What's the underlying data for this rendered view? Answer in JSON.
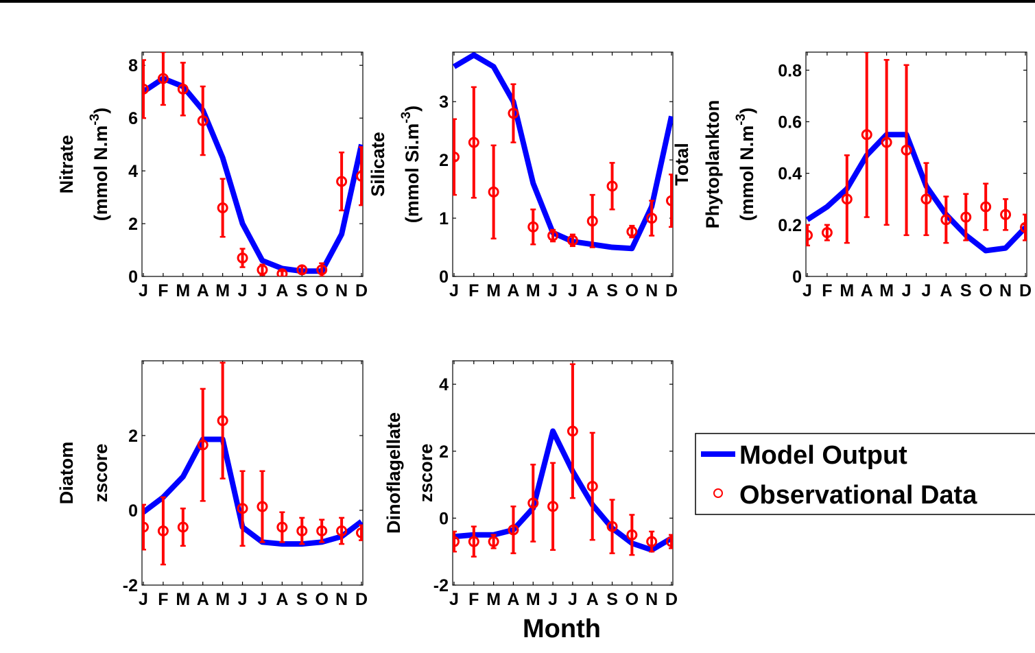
{
  "figure": {
    "xlabel": "Month",
    "legend": {
      "placement": "bottom-right",
      "entries": [
        {
          "label": "Model Output",
          "marker": "line",
          "color": "#0000ff"
        },
        {
          "label": "Observational Data",
          "marker": "circle",
          "color": "#ff0000"
        }
      ]
    }
  },
  "chart_data": [
    {
      "type": "line",
      "ylabel": [
        "Nitrate",
        "(mmol N.m^-3)"
      ],
      "categories": [
        "J",
        "F",
        "M",
        "A",
        "M",
        "J",
        "J",
        "A",
        "S",
        "O",
        "N",
        "D"
      ],
      "ylim": [
        0,
        8.5
      ],
      "yticks": [
        0,
        2,
        4,
        6,
        8
      ],
      "series": [
        {
          "name": "Model Output",
          "values": [
            7.0,
            7.5,
            7.2,
            6.3,
            4.5,
            2.0,
            0.6,
            0.3,
            0.2,
            0.2,
            1.6,
            5.0
          ]
        },
        {
          "name": "Observational Data",
          "values": [
            7.1,
            7.5,
            7.1,
            5.9,
            2.6,
            0.7,
            0.25,
            0.1,
            0.25,
            0.25,
            3.6,
            3.8
          ],
          "errors": [
            1.1,
            1.0,
            1.0,
            1.3,
            1.1,
            0.35,
            0.2,
            0.1,
            0.15,
            0.25,
            1.1,
            1.1
          ]
        }
      ]
    },
    {
      "type": "line",
      "ylabel": [
        "Silicate",
        "(mmol Si.m^-3)"
      ],
      "categories": [
        "J",
        "F",
        "M",
        "A",
        "M",
        "J",
        "J",
        "A",
        "S",
        "O",
        "N",
        "D"
      ],
      "ylim": [
        0,
        3.85
      ],
      "yticks": [
        0,
        1,
        2,
        3
      ],
      "series": [
        {
          "name": "Model Output",
          "values": [
            3.6,
            3.8,
            3.6,
            3.0,
            1.6,
            0.75,
            0.6,
            0.55,
            0.5,
            0.48,
            1.2,
            2.75
          ]
        },
        {
          "name": "Observational Data",
          "values": [
            2.05,
            2.3,
            1.45,
            2.8,
            0.85,
            0.7,
            0.62,
            0.95,
            1.55,
            0.77,
            1.0,
            1.3
          ],
          "errors": [
            0.65,
            0.95,
            0.8,
            0.5,
            0.3,
            0.1,
            0.1,
            0.45,
            0.4,
            0.1,
            0.3,
            0.45
          ]
        }
      ]
    },
    {
      "type": "line",
      "ylabel": [
        "Total",
        "Phytoplankton",
        "(mmol N.m^-3)"
      ],
      "categories": [
        "J",
        "F",
        "M",
        "A",
        "M",
        "J",
        "J",
        "A",
        "S",
        "O",
        "N",
        "D"
      ],
      "ylim": [
        0,
        0.87
      ],
      "yticks": [
        0,
        0.2,
        0.4,
        0.6,
        0.8
      ],
      "series": [
        {
          "name": "Model Output",
          "values": [
            0.22,
            0.27,
            0.34,
            0.47,
            0.55,
            0.55,
            0.35,
            0.24,
            0.16,
            0.1,
            0.11,
            0.19
          ]
        },
        {
          "name": "Observational Data",
          "values": [
            0.16,
            0.17,
            0.3,
            0.55,
            0.52,
            0.49,
            0.3,
            0.22,
            0.23,
            0.27,
            0.24,
            0.19
          ],
          "errors": [
            0.04,
            0.03,
            0.17,
            0.32,
            0.32,
            0.33,
            0.14,
            0.09,
            0.09,
            0.09,
            0.06,
            0.05
          ]
        }
      ]
    },
    {
      "type": "line",
      "ylabel": [
        "Diatom",
        "zscore"
      ],
      "categories": [
        "J",
        "F",
        "M",
        "A",
        "M",
        "J",
        "J",
        "A",
        "S",
        "O",
        "N",
        "D"
      ],
      "ylim": [
        -2,
        4
      ],
      "yticks": [
        -2,
        0,
        2
      ],
      "series": [
        {
          "name": "Model Output",
          "values": [
            -0.05,
            0.35,
            0.9,
            1.9,
            1.9,
            -0.45,
            -0.85,
            -0.9,
            -0.9,
            -0.85,
            -0.7,
            -0.3
          ]
        },
        {
          "name": "Observational Data",
          "values": [
            -0.45,
            -0.55,
            -0.45,
            1.75,
            2.4,
            0.05,
            0.1,
            -0.45,
            -0.55,
            -0.55,
            -0.55,
            -0.6
          ],
          "errors": [
            0.6,
            0.9,
            0.5,
            1.5,
            1.55,
            1.0,
            0.95,
            0.4,
            0.35,
            0.3,
            0.35,
            0.2
          ]
        }
      ]
    },
    {
      "type": "line",
      "ylabel": [
        "Dinoflagellate",
        "zscore"
      ],
      "categories": [
        "J",
        "F",
        "M",
        "A",
        "M",
        "J",
        "J",
        "A",
        "S",
        "O",
        "N",
        "D"
      ],
      "ylim": [
        -2,
        4.7
      ],
      "yticks": [
        -2,
        0,
        2,
        4
      ],
      "series": [
        {
          "name": "Model Output",
          "values": [
            -0.55,
            -0.5,
            -0.5,
            -0.35,
            0.3,
            2.6,
            1.4,
            0.4,
            -0.3,
            -0.75,
            -0.95,
            -0.6
          ]
        },
        {
          "name": "Observational Data",
          "values": [
            -0.7,
            -0.7,
            -0.7,
            -0.35,
            0.45,
            0.35,
            2.6,
            0.95,
            -0.25,
            -0.5,
            -0.7,
            -0.7
          ],
          "errors": [
            0.3,
            0.45,
            0.2,
            0.7,
            1.15,
            1.3,
            2.0,
            1.6,
            0.8,
            0.6,
            0.3,
            0.2
          ]
        }
      ]
    }
  ]
}
